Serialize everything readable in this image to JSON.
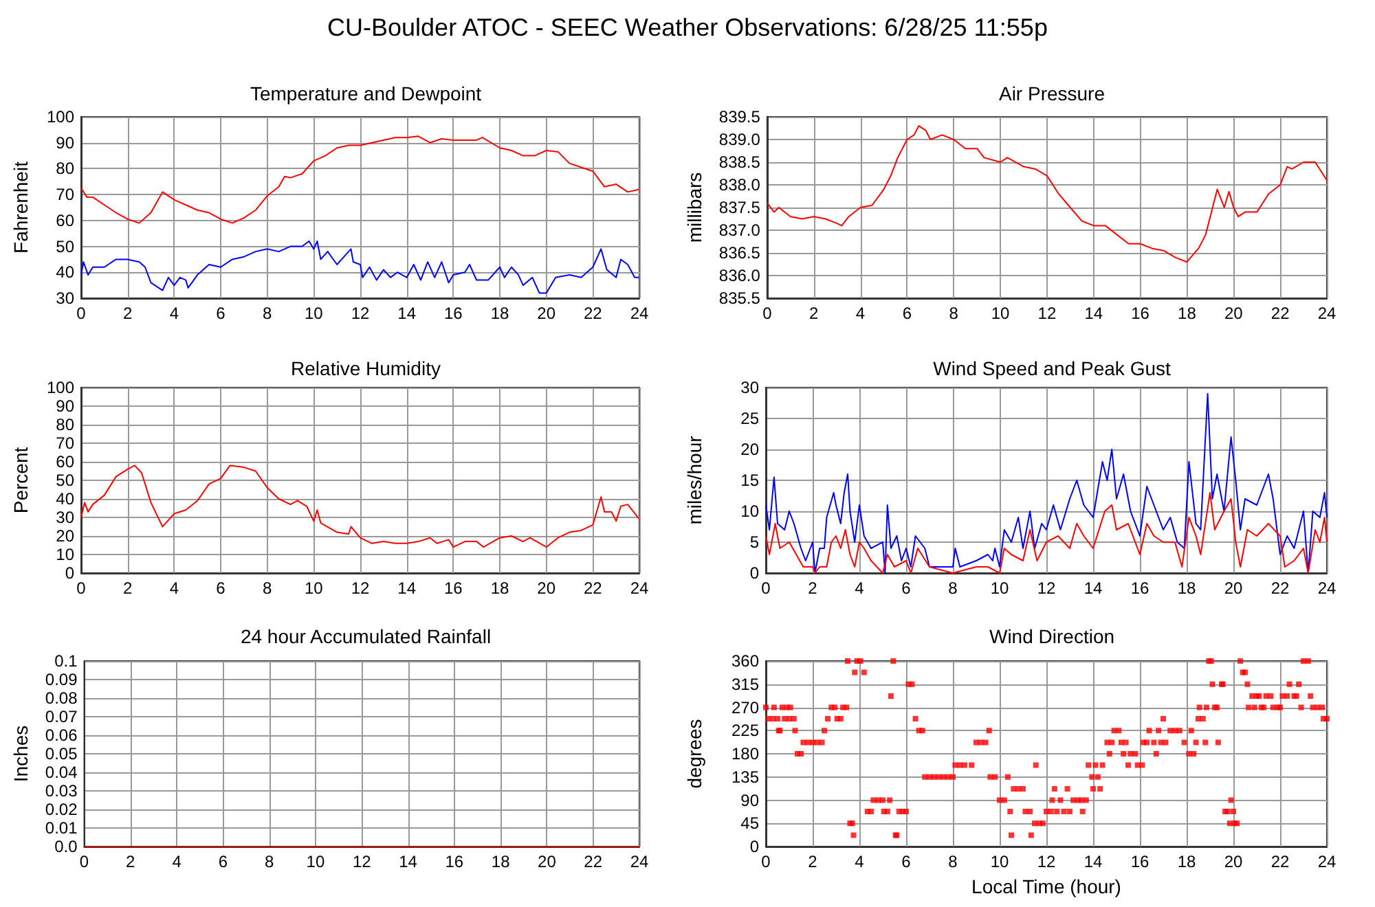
{
  "chart_data": [
    {
      "type": "line",
      "title": "Temperature and Dewpoint",
      "ylabel": "Fahrenheit",
      "annotations": [
        "CU-Boulder ATOC - SEEC Weather Observations: 6/28/25 11:55p"
      ],
      "xlim": [
        0,
        24
      ],
      "xticks": [
        0,
        2,
        4,
        6,
        8,
        10,
        12,
        14,
        16,
        18,
        20,
        22,
        24
      ],
      "ylim": [
        30,
        100
      ],
      "yticks": [
        30,
        40,
        50,
        60,
        70,
        80,
        90,
        100
      ],
      "grid": true,
      "series": [
        {
          "color": "#ff0000",
          "x": [
            0,
            0.25,
            0.5,
            1,
            1.5,
            2,
            2.5,
            3,
            3.25,
            3.5,
            4,
            4.5,
            5,
            5.5,
            6,
            6.5,
            7,
            7.5,
            8,
            8.5,
            8.75,
            9,
            9.5,
            10,
            10.5,
            11,
            11.5,
            12,
            12.5,
            13,
            13.5,
            14,
            14.5,
            15,
            15.5,
            16,
            16.5,
            17,
            17.25,
            18,
            18.5,
            19,
            19.5,
            20,
            20.5,
            21,
            21.5,
            22,
            22.5,
            23,
            23.5,
            24
          ],
          "values": [
            72.5,
            69,
            69,
            66,
            63,
            60.5,
            59,
            63,
            67,
            71,
            68,
            66,
            64,
            63,
            60.5,
            59,
            61,
            64,
            69.5,
            73,
            77,
            76.5,
            78,
            83,
            85,
            88,
            89,
            89,
            90,
            91,
            92,
            92,
            92.5,
            90,
            91.5,
            91,
            91,
            91,
            92,
            88,
            87,
            85,
            85,
            87,
            86.5,
            82,
            80.5,
            79,
            73,
            74,
            71,
            72
          ]
        },
        {
          "color": "#0000ff",
          "x": [
            0,
            0.1,
            0.3,
            0.5,
            1,
            1.5,
            2,
            2.5,
            2.75,
            3,
            3.5,
            3.75,
            4,
            4.25,
            4.5,
            4.6,
            5,
            5.5,
            6,
            6.5,
            7,
            7.5,
            8,
            8.5,
            9,
            9.5,
            9.8,
            10,
            10.15,
            10.3,
            10.6,
            11,
            11.3,
            11.6,
            11.7,
            12,
            12.1,
            12.4,
            12.7,
            13,
            13.3,
            13.6,
            14,
            14.3,
            14.6,
            14.9,
            15.2,
            15.5,
            15.8,
            16,
            16.5,
            16.7,
            17,
            17.5,
            18,
            18.2,
            18.5,
            18.8,
            19,
            19.4,
            19.7,
            20,
            20.4,
            21,
            21.5,
            22,
            22.35,
            22.6,
            23,
            23.2,
            23.5,
            23.8,
            24
          ],
          "values": [
            39,
            44,
            39,
            42,
            42,
            45,
            45,
            44,
            42,
            36,
            33,
            38,
            35,
            38,
            37,
            34,
            39,
            43,
            42,
            45,
            46,
            48,
            49,
            48,
            50,
            50,
            52,
            49,
            52,
            45,
            48,
            43,
            46,
            49,
            44,
            43,
            38,
            42,
            37,
            41,
            38,
            40,
            38,
            43,
            37,
            44,
            38,
            44,
            36,
            39,
            40,
            43,
            37,
            37,
            42,
            38,
            42,
            39,
            35,
            38,
            32,
            32,
            38,
            39,
            38,
            42,
            49,
            41,
            38,
            45,
            43,
            38,
            38
          ]
        }
      ]
    },
    {
      "type": "line",
      "title": "Air Pressure",
      "ylabel": "millibars",
      "xlim": [
        0,
        24
      ],
      "xticks": [
        0,
        2,
        4,
        6,
        8,
        10,
        12,
        14,
        16,
        18,
        20,
        22,
        24
      ],
      "ylim": [
        835.5,
        839.5
      ],
      "yticks": [
        835.5,
        {
          "value": 836,
          "label": "836.0"
        },
        836.5,
        {
          "value": 837,
          "label": "837.0"
        },
        837.5,
        {
          "value": 838,
          "label": "838.0"
        },
        838.5,
        {
          "value": 839,
          "label": "839.0"
        },
        839.5
      ],
      "grid": true,
      "series": [
        {
          "color": "#ff0000",
          "x": [
            0,
            0.3,
            0.5,
            1,
            1.5,
            2,
            2.5,
            3,
            3.2,
            3.5,
            4,
            4.5,
            5,
            5.3,
            5.6,
            6,
            6.3,
            6.5,
            6.8,
            7,
            7.5,
            8,
            8.5,
            9,
            9.3,
            10,
            10.3,
            11,
            11.5,
            12,
            12.5,
            13,
            13.5,
            14,
            14.5,
            15,
            15.5,
            16,
            16.5,
            17,
            17.5,
            18,
            18.5,
            18.8,
            19,
            19.3,
            19.6,
            19.8,
            20,
            20.2,
            20.5,
            21,
            21.5,
            22,
            22.3,
            22.5,
            23,
            23.5,
            24
          ],
          "values": [
            837.6,
            837.4,
            837.5,
            837.3,
            837.25,
            837.3,
            837.25,
            837.15,
            837.1,
            837.3,
            837.5,
            837.55,
            837.9,
            838.2,
            838.6,
            839.0,
            839.1,
            839.3,
            839.2,
            839.0,
            839.1,
            839.0,
            838.8,
            838.8,
            838.6,
            838.5,
            838.6,
            838.4,
            838.35,
            838.2,
            837.8,
            837.5,
            837.2,
            837.1,
            837.1,
            836.9,
            836.7,
            836.7,
            836.6,
            836.55,
            836.4,
            836.3,
            836.6,
            836.9,
            837.3,
            837.9,
            837.5,
            837.85,
            837.5,
            837.3,
            837.4,
            837.4,
            837.8,
            838.0,
            838.4,
            838.35,
            838.5,
            838.5,
            838.1
          ]
        }
      ]
    },
    {
      "type": "line",
      "title": "Relative Humidity",
      "ylabel": "Percent",
      "xlim": [
        0,
        24
      ],
      "xticks": [
        0,
        2,
        4,
        6,
        8,
        10,
        12,
        14,
        16,
        18,
        20,
        22,
        24
      ],
      "ylim": [
        0,
        100
      ],
      "yticks": [
        0,
        10,
        20,
        30,
        40,
        50,
        60,
        70,
        80,
        90,
        100
      ],
      "grid": true,
      "series": [
        {
          "color": "#ff0000",
          "x": [
            0,
            0.15,
            0.3,
            0.5,
            1,
            1.5,
            2,
            2.3,
            2.6,
            3,
            3.5,
            4,
            4.5,
            5,
            5.5,
            6,
            6.4,
            7,
            7.5,
            8,
            8.5,
            9,
            9.3,
            9.7,
            10,
            10.15,
            10.3,
            11,
            11.5,
            11.6,
            12,
            12.5,
            13,
            13.5,
            14,
            14.5,
            15,
            15.3,
            15.8,
            16,
            16.5,
            17,
            17.3,
            18,
            18.5,
            19,
            19.3,
            20,
            20.5,
            21,
            21.5,
            22,
            22.35,
            22.5,
            22.8,
            23,
            23.2,
            23.5,
            24
          ],
          "values": [
            30,
            38,
            33,
            37,
            42,
            52,
            56,
            58,
            54,
            38,
            25,
            32,
            34,
            39,
            48,
            51,
            58,
            57,
            55,
            46,
            40,
            37,
            39,
            36,
            28,
            34,
            27,
            22,
            21,
            25,
            19,
            16,
            17,
            16,
            16,
            17,
            19,
            16,
            18,
            14,
            17,
            17,
            14,
            19,
            20,
            17,
            19,
            14,
            19,
            22,
            23,
            26,
            41,
            33,
            33,
            28,
            36,
            37,
            29
          ]
        }
      ]
    },
    {
      "type": "line",
      "title": "Wind Speed and Peak Gust",
      "ylabel": "miles/hour",
      "xlim": [
        0,
        24
      ],
      "xticks": [
        0,
        2,
        4,
        6,
        8,
        10,
        12,
        14,
        16,
        18,
        20,
        22,
        24
      ],
      "ylim": [
        0,
        30
      ],
      "yticks": [
        0,
        5,
        10,
        15,
        20,
        25,
        30
      ],
      "grid": true,
      "series": [
        {
          "color": "#0000ff",
          "x": [
            0,
            0.15,
            0.35,
            0.5,
            0.8,
            1,
            1.2,
            1.5,
            1.7,
            2,
            2.1,
            2.3,
            2.5,
            2.6,
            2.9,
            3,
            3.2,
            3.35,
            3.5,
            3.6,
            3.8,
            3.9,
            4,
            4.2,
            4.5,
            5,
            5.1,
            5.2,
            5.35,
            5.6,
            5.8,
            6,
            6.2,
            6.4,
            6.8,
            7,
            7.5,
            8,
            8.1,
            8.3,
            9,
            9.5,
            9.7,
            9.8,
            10,
            10.2,
            10.5,
            10.8,
            11,
            11.3,
            11.5,
            11.8,
            12,
            12.3,
            12.6,
            13,
            13.3,
            13.6,
            14,
            14.4,
            14.6,
            14.8,
            15,
            15.3,
            15.6,
            16,
            16.3,
            16.6,
            17,
            17.3,
            17.6,
            17.9,
            18.1,
            18.4,
            18.6,
            18.9,
            19.1,
            19.3,
            19.6,
            19.9,
            20.1,
            20.3,
            20.5,
            21,
            21.5,
            21.7,
            22,
            22.3,
            22.6,
            23,
            23.2,
            23.4,
            23.7,
            23.9,
            24
          ],
          "values": [
            11,
            7,
            15.5,
            8,
            7,
            10,
            8,
            4,
            2,
            5,
            0,
            4,
            4,
            9,
            13,
            11,
            8,
            13,
            16,
            10,
            5,
            8,
            11,
            6,
            4,
            5,
            0,
            11,
            4,
            6,
            2,
            4,
            1,
            6,
            4,
            1,
            1,
            1,
            4,
            1,
            2,
            3,
            2,
            4,
            1,
            7,
            5,
            9,
            4,
            10,
            4,
            8,
            7,
            11,
            7,
            12,
            15,
            11,
            9,
            18,
            15,
            20,
            12,
            16,
            10,
            6,
            14,
            11,
            7,
            9,
            5,
            4,
            18,
            8,
            7,
            29,
            12,
            16,
            10,
            22,
            15,
            7,
            12,
            11,
            16,
            12,
            3,
            6,
            4,
            10,
            0,
            10,
            9,
            13,
            9
          ]
        },
        {
          "color": "#ff0000",
          "x": [
            0,
            0.15,
            0.4,
            0.6,
            1,
            1.3,
            1.6,
            2,
            2.1,
            2.3,
            2.6,
            2.8,
            3,
            3.2,
            3.4,
            3.6,
            3.8,
            4,
            4.2,
            4.5,
            5,
            5.2,
            5.5,
            6,
            6.2,
            6.5,
            7,
            8,
            9,
            9.5,
            10,
            10.2,
            10.5,
            11,
            11.3,
            11.6,
            12,
            12.5,
            13,
            13.3,
            13.6,
            14,
            14.5,
            14.8,
            15,
            15.5,
            16,
            16.3,
            16.6,
            17,
            17.5,
            17.8,
            18.1,
            18.4,
            18.6,
            19,
            19.2,
            19.6,
            19.9,
            20.1,
            20.3,
            20.6,
            21,
            21.5,
            22,
            22.2,
            22.6,
            23,
            23.2,
            23.5,
            23.7,
            23.9,
            24
          ],
          "values": [
            6,
            3,
            8,
            4,
            5,
            3,
            1,
            1,
            0,
            1,
            1,
            5,
            6,
            4,
            7,
            3,
            1,
            5,
            4,
            2,
            0,
            3,
            1,
            2,
            0,
            4,
            1,
            0,
            1,
            1,
            0,
            4,
            3,
            2,
            7,
            2,
            5,
            6,
            4,
            8,
            6,
            4,
            10,
            11,
            7,
            8,
            3,
            8,
            6,
            5,
            5,
            1,
            9,
            6,
            3,
            13,
            7,
            10,
            12,
            5,
            1,
            7,
            6,
            8,
            6,
            1,
            2,
            4,
            0,
            7,
            5,
            9,
            5
          ]
        }
      ]
    },
    {
      "type": "line",
      "title": "24 hour Accumulated Rainfall",
      "ylabel": "Inches",
      "xlim": [
        0,
        24
      ],
      "xticks": [
        0,
        2,
        4,
        6,
        8,
        10,
        12,
        14,
        16,
        18,
        20,
        22,
        24
      ],
      "ylim": [
        0,
        0.1
      ],
      "yticks": [
        {
          "value": 0,
          "label": "0.0"
        },
        0.01,
        0.02,
        0.03,
        0.04,
        0.05,
        0.06,
        0.07,
        0.08,
        0.09,
        0.1
      ],
      "grid": true,
      "series": [
        {
          "color": "#cc0000",
          "x": [
            0,
            6,
            12,
            18,
            24
          ],
          "values": [
            0,
            0,
            0,
            0,
            0
          ]
        }
      ]
    },
    {
      "type": "scatter",
      "title": "Wind Direction",
      "xlabel": "Local Time (hour)",
      "ylabel": "degrees",
      "xlim": [
        0,
        24
      ],
      "xticks": [
        0,
        2,
        4,
        6,
        8,
        10,
        12,
        14,
        16,
        18,
        20,
        22,
        24
      ],
      "ylim": [
        0,
        360
      ],
      "yticks": [
        0,
        45,
        90,
        135,
        180,
        225,
        270,
        315,
        360
      ],
      "grid": true,
      "marker": "square",
      "series": [
        {
          "color": "#ff0000",
          "x": [
            0,
            0.1,
            0.3,
            0.35,
            0.5,
            0.55,
            0.6,
            0.7,
            0.8,
            0.9,
            1.0,
            1.05,
            1.2,
            1.25,
            1.35,
            1.5,
            1.6,
            1.8,
            2.0,
            2.2,
            2.4,
            2.5,
            2.65,
            2.8,
            2.95,
            3.05,
            3.2,
            3.3,
            3.45,
            3.5,
            3.6,
            3.7,
            3.75,
            3.8,
            3.9,
            4.05,
            4.2,
            4.35,
            4.5,
            4.6,
            4.8,
            5.0,
            5.05,
            5.2,
            5.3,
            5.35,
            5.45,
            5.55,
            5.6,
            5.7,
            5.85,
            6.0,
            6.1,
            6.25,
            6.4,
            6.55,
            6.7,
            6.8,
            7.0,
            7.2,
            7.4,
            7.6,
            7.8,
            8.0,
            8.1,
            8.3,
            8.5,
            8.8,
            9.0,
            9.2,
            9.4,
            9.55,
            9.6,
            9.8,
            10.0,
            10.2,
            10.35,
            10.45,
            10.5,
            10.6,
            10.8,
            11.0,
            11.1,
            11.3,
            11.35,
            11.5,
            11.55,
            11.7,
            11.85,
            12.0,
            12.2,
            12.25,
            12.35,
            12.45,
            12.6,
            12.75,
            12.9,
            13.0,
            13.15,
            13.35,
            13.5,
            13.55,
            13.7,
            13.8,
            13.95,
            14.0,
            14.1,
            14.2,
            14.3,
            14.4,
            14.6,
            14.7,
            14.8,
            14.9,
            15.1,
            15.2,
            15.3,
            15.4,
            15.5,
            15.6,
            15.8,
            15.9,
            16.1,
            16.15,
            16.3,
            16.4,
            16.6,
            16.7,
            16.8,
            16.9,
            17.0,
            17.1,
            17.3,
            17.5,
            17.7,
            17.9,
            18.1,
            18.2,
            18.3,
            18.4,
            18.5,
            18.55,
            18.7,
            18.8,
            18.85,
            18.95,
            19.05,
            19.1,
            19.2,
            19.3,
            19.35,
            19.5,
            19.55,
            19.65,
            19.75,
            19.85,
            19.9,
            20.0,
            20.05,
            20.15,
            20.3,
            20.4,
            20.5,
            20.6,
            20.65,
            20.8,
            20.9,
            21.0,
            21.1,
            21.2,
            21.3,
            21.4,
            21.6,
            21.7,
            21.9,
            22.0,
            22.1,
            22.3,
            22.4,
            22.6,
            22.7,
            22.8,
            22.9,
            23.0,
            23.2,
            23.3,
            23.4,
            23.6,
            23.8,
            23.85,
            24.0
          ],
          "values": [
            270,
            248,
            248,
            270,
            248,
            225,
            225,
            270,
            248,
            270,
            248,
            270,
            248,
            225,
            180,
            180,
            202,
            202,
            202,
            202,
            202,
            225,
            248,
            270,
            270,
            248,
            248,
            270,
            270,
            360,
            45,
            45,
            22,
            338,
            360,
            360,
            338,
            68,
            68,
            90,
            90,
            90,
            68,
            68,
            90,
            292,
            360,
            22,
            22,
            68,
            68,
            68,
            315,
            315,
            248,
            225,
            225,
            135,
            135,
            135,
            135,
            135,
            135,
            135,
            158,
            158,
            158,
            158,
            202,
            202,
            202,
            225,
            135,
            135,
            90,
            90,
            135,
            68,
            22,
            112,
            112,
            112,
            68,
            68,
            22,
            45,
            158,
            45,
            45,
            68,
            68,
            90,
            112,
            68,
            90,
            68,
            112,
            68,
            90,
            90,
            90,
            68,
            90,
            158,
            135,
            112,
            158,
            135,
            112,
            158,
            202,
            180,
            202,
            225,
            225,
            202,
            180,
            202,
            158,
            180,
            180,
            158,
            158,
            202,
            202,
            225,
            202,
            180,
            225,
            202,
            248,
            202,
            225,
            225,
            225,
            202,
            180,
            225,
            180,
            202,
            248,
            270,
            248,
            202,
            270,
            360,
            360,
            315,
            270,
            270,
            202,
            315,
            315,
            68,
            68,
            45,
            90,
            68,
            45,
            45,
            360,
            338,
            338,
            315,
            270,
            292,
            270,
            292,
            292,
            270,
            270,
            292,
            292,
            270,
            270,
            270,
            292,
            292,
            315,
            292,
            292,
            315,
            270,
            360,
            360,
            292,
            270,
            270,
            270,
            248,
            248
          ]
        }
      ]
    }
  ]
}
